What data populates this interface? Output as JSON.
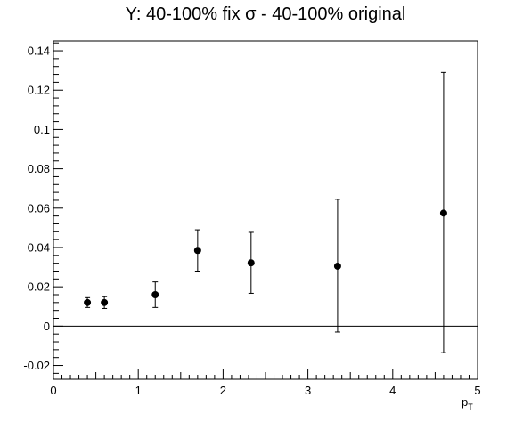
{
  "chart_data": {
    "type": "scatter",
    "title": "Y: 40-100% fix σ - 40-100% original",
    "xlabel_main": "p",
    "xlabel_sub": "T",
    "ylabel": "",
    "xlim": [
      0,
      5
    ],
    "ylim": [
      -0.027,
      0.145
    ],
    "x_ticks": [
      0,
      1,
      2,
      3,
      4,
      5
    ],
    "x_tick_labels": [
      "0",
      "1",
      "2",
      "3",
      "4",
      "5"
    ],
    "y_ticks": [
      -0.02,
      0,
      0.02,
      0.04,
      0.06,
      0.08,
      0.1,
      0.12,
      0.14
    ],
    "y_tick_labels": [
      "-0.02",
      "0",
      "0.02",
      "0.04",
      "0.06",
      "0.08",
      "0.1",
      "0.12",
      "0.14"
    ],
    "reference_line_y": 0,
    "grid": false,
    "series": [
      {
        "points": [
          {
            "x": 0.4,
            "y": 0.012,
            "err_low": 0.0025,
            "err_high": 0.0025
          },
          {
            "x": 0.6,
            "y": 0.012,
            "err_low": 0.003,
            "err_high": 0.003
          },
          {
            "x": 1.2,
            "y": 0.016,
            "err_low": 0.0065,
            "err_high": 0.0065
          },
          {
            "x": 1.7,
            "y": 0.0385,
            "err_low": 0.0105,
            "err_high": 0.0105
          },
          {
            "x": 2.33,
            "y": 0.0322,
            "err_low": 0.0155,
            "err_high": 0.0155
          },
          {
            "x": 3.35,
            "y": 0.0305,
            "err_low": 0.0335,
            "err_high": 0.034
          },
          {
            "x": 4.6,
            "y": 0.0575,
            "err_low": 0.071,
            "err_high": 0.0715
          }
        ]
      }
    ]
  }
}
